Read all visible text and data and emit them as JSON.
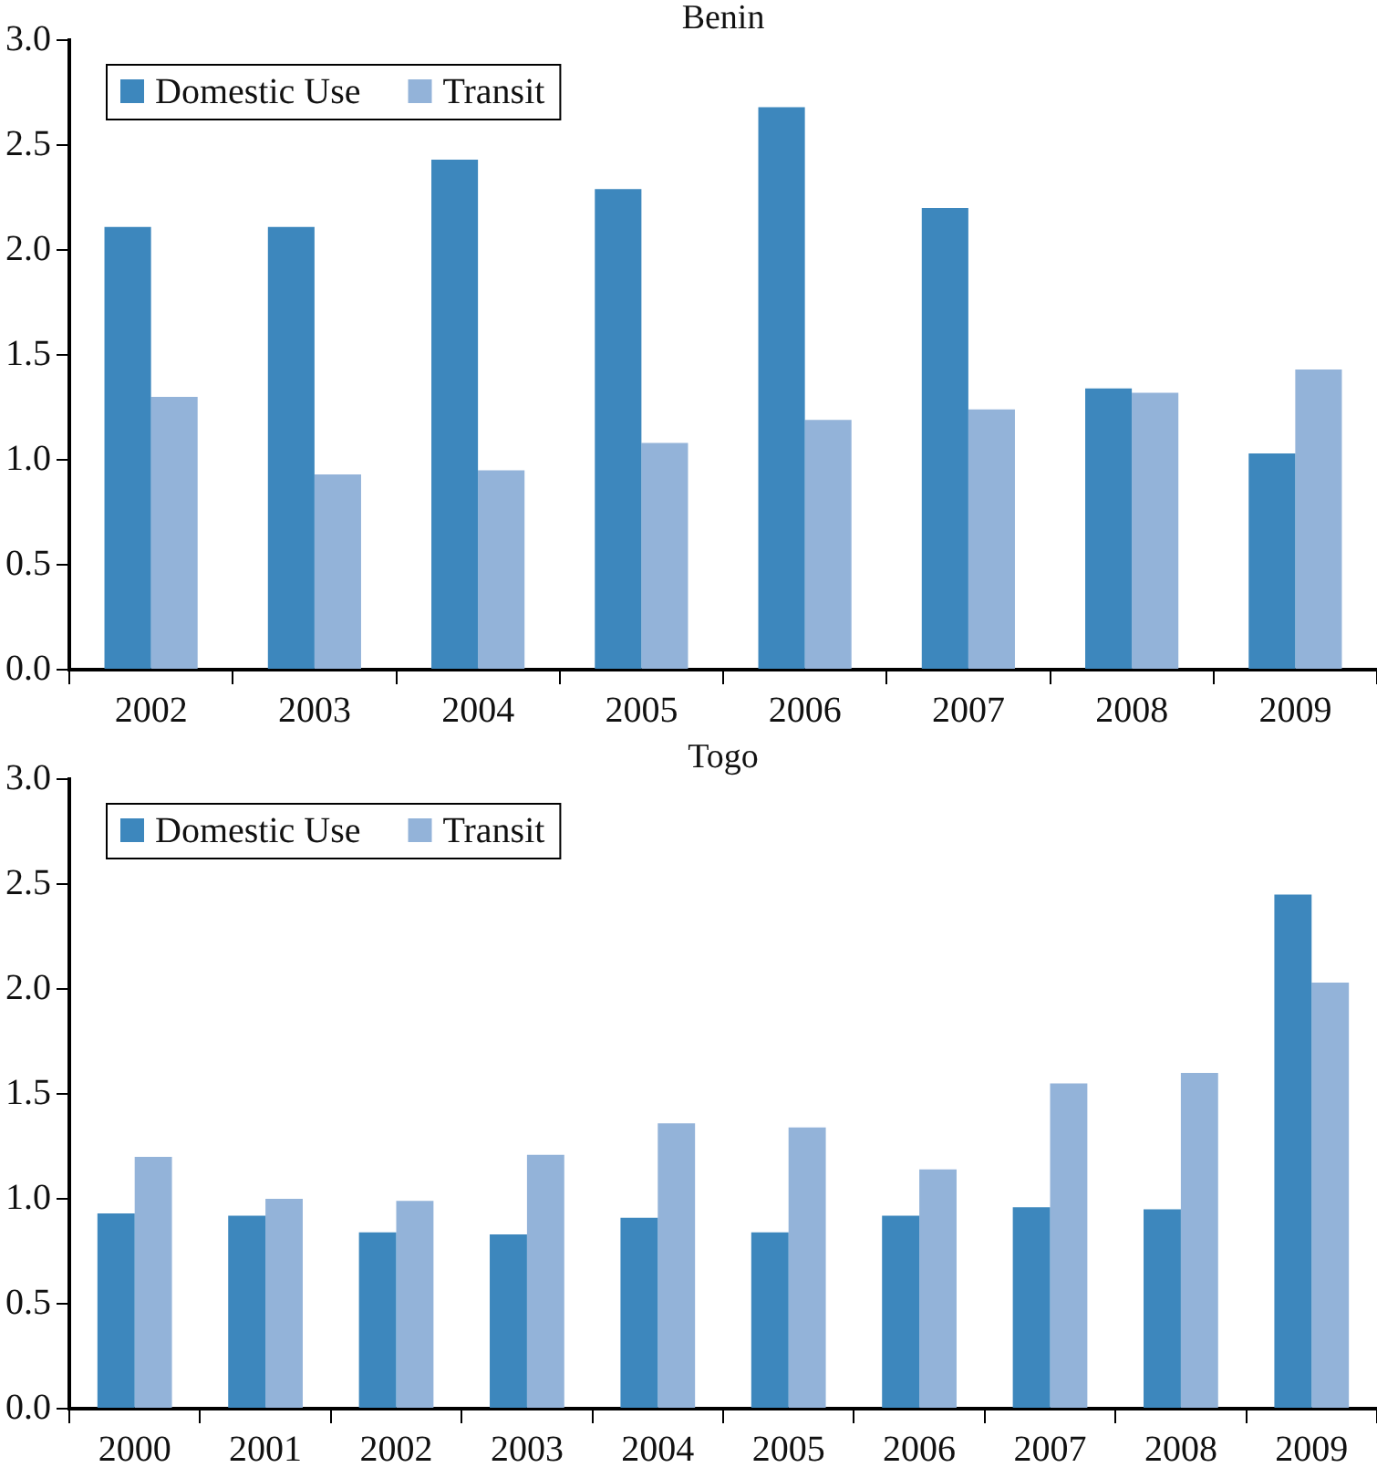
{
  "chart_data": [
    {
      "type": "bar",
      "title": "Benin",
      "categories": [
        "2002",
        "2003",
        "2004",
        "2005",
        "2006",
        "2007",
        "2008",
        "2009"
      ],
      "series": [
        {
          "name": "Domestic Use",
          "color": "#3d87bd",
          "values": [
            2.11,
            2.11,
            2.43,
            2.29,
            2.68,
            2.2,
            1.34,
            1.03
          ]
        },
        {
          "name": "Transit",
          "color": "#93b3d9",
          "values": [
            1.3,
            0.93,
            0.95,
            1.08,
            1.19,
            1.24,
            1.32,
            1.43
          ]
        }
      ],
      "ylim": [
        0,
        3
      ],
      "yticks": [
        {
          "value": 0,
          "label": "0.0"
        },
        {
          "value": 0.5,
          "label": "0.5"
        },
        {
          "value": 1,
          "label": "1.0"
        },
        {
          "value": 1.5,
          "label": "1.5"
        },
        {
          "value": 2,
          "label": "2.0"
        },
        {
          "value": 2.5,
          "label": "2.5"
        },
        {
          "value": 3,
          "label": "3.0"
        }
      ],
      "grid": false,
      "legend": "top left"
    },
    {
      "type": "bar",
      "title": "Togo",
      "categories": [
        "2000",
        "2001",
        "2002",
        "2003",
        "2004",
        "2005",
        "2006",
        "2007",
        "2008",
        "2009"
      ],
      "series": [
        {
          "name": "Domestic Use",
          "color": "#3d87bd",
          "values": [
            0.93,
            0.92,
            0.84,
            0.83,
            0.91,
            0.84,
            0.92,
            0.96,
            0.95,
            2.45
          ]
        },
        {
          "name": "Transit",
          "color": "#93b3d9",
          "values": [
            1.2,
            1.0,
            0.99,
            1.21,
            1.36,
            1.34,
            1.14,
            1.55,
            1.6,
            2.03
          ]
        }
      ],
      "ylim": [
        0,
        3
      ],
      "yticks": [
        {
          "value": 0,
          "label": "0.0"
        },
        {
          "value": 0.5,
          "label": "0.5"
        },
        {
          "value": 1,
          "label": "1.0"
        },
        {
          "value": 1.5,
          "label": "1.5"
        },
        {
          "value": 2,
          "label": "2.0"
        },
        {
          "value": 2.5,
          "label": "2.5"
        },
        {
          "value": 3,
          "label": "3.0"
        }
      ],
      "grid": false,
      "legend": "top left"
    }
  ]
}
